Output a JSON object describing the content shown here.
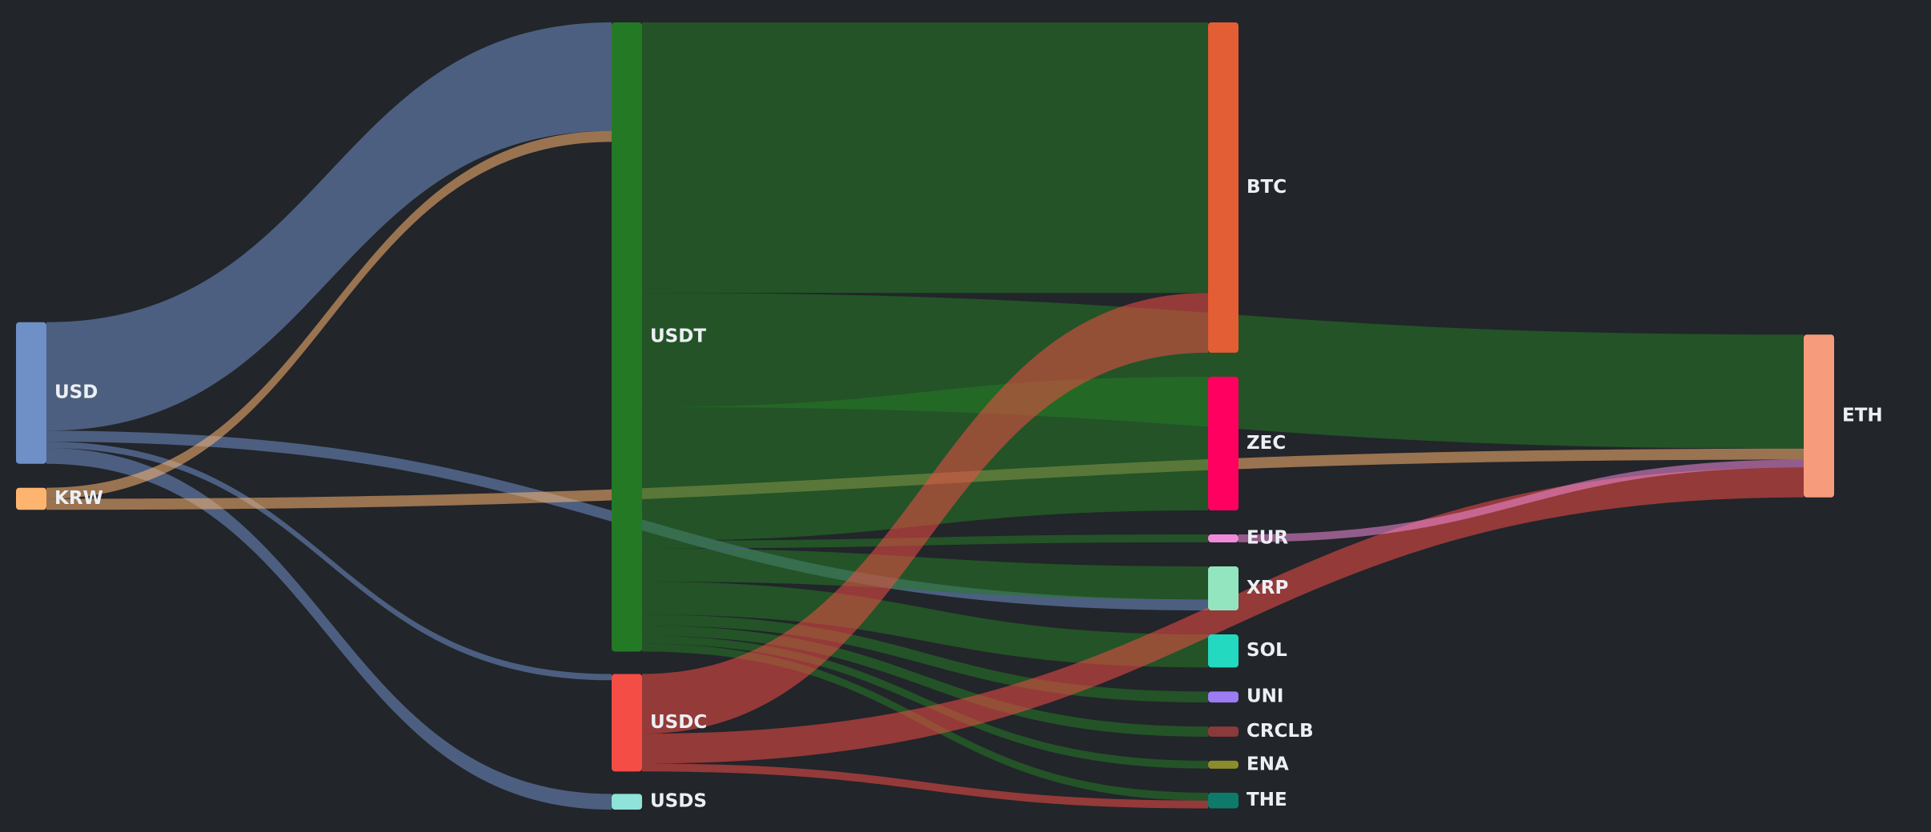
{
  "chart_data": {
    "type": "sankey",
    "title": "",
    "columns": [
      [
        "USD",
        "KRW"
      ],
      [
        "USDT",
        "USDC",
        "USDS"
      ],
      [
        "BTC",
        "ZEC",
        "EUR",
        "XRP",
        "SOL",
        "UNI",
        "CRCLB",
        "ENA",
        "THE"
      ],
      [
        "ETH"
      ]
    ],
    "nodes": [
      {
        "name": "USD",
        "color": "#6f8fc7"
      },
      {
        "name": "KRW",
        "color": "#fdb46f"
      },
      {
        "name": "USDT",
        "color": "#247a24"
      },
      {
        "name": "USDC",
        "color": "#f34d45"
      },
      {
        "name": "USDS",
        "color": "#8fe3d8"
      },
      {
        "name": "BTC",
        "color": "#e35d35"
      },
      {
        "name": "ZEC",
        "color": "#ff0060"
      },
      {
        "name": "EUR",
        "color": "#f08ad8"
      },
      {
        "name": "XRP",
        "color": "#92e5bf"
      },
      {
        "name": "SOL",
        "color": "#23d9bf"
      },
      {
        "name": "UNI",
        "color": "#9b7cf2"
      },
      {
        "name": "CRCLB",
        "color": "#8a3a3a"
      },
      {
        "name": "ENA",
        "color": "#8c8c2a"
      },
      {
        "name": "THE",
        "color": "#0e7a6a"
      },
      {
        "name": "ETH",
        "color": "#f69c7c"
      }
    ],
    "links": [
      {
        "source": "USD",
        "target": "USDT",
        "value": 138
      },
      {
        "source": "USD",
        "target": "XRP",
        "value": 14
      },
      {
        "source": "USD",
        "target": "USDC",
        "value": 8
      },
      {
        "source": "USD",
        "target": "USDS",
        "value": 20
      },
      {
        "source": "KRW",
        "target": "USDT",
        "value": 14
      },
      {
        "source": "KRW",
        "target": "ETH",
        "value": 14
      },
      {
        "source": "USDT",
        "target": "BTC",
        "value": 344
      },
      {
        "source": "USDT",
        "target": "ETH",
        "value": 145
      },
      {
        "source": "USDT",
        "target": "ZEC",
        "value": 170
      },
      {
        "source": "USDT",
        "target": "EUR",
        "value": 10
      },
      {
        "source": "USDT",
        "target": "XRP",
        "value": 42
      },
      {
        "source": "USDT",
        "target": "SOL",
        "value": 42
      },
      {
        "source": "USDT",
        "target": "UNI",
        "value": 14
      },
      {
        "source": "USDT",
        "target": "CRCLB",
        "value": 13
      },
      {
        "source": "USDT",
        "target": "ENA",
        "value": 10
      },
      {
        "source": "USDT",
        "target": "THE",
        "value": 10
      },
      {
        "source": "USDC",
        "target": "BTC",
        "value": 76
      },
      {
        "source": "USDC",
        "target": "ETH",
        "value": 38
      },
      {
        "source": "USDC",
        "target": "THE",
        "value": 10
      },
      {
        "source": "EUR",
        "target": "ETH",
        "value": 10
      }
    ]
  }
}
